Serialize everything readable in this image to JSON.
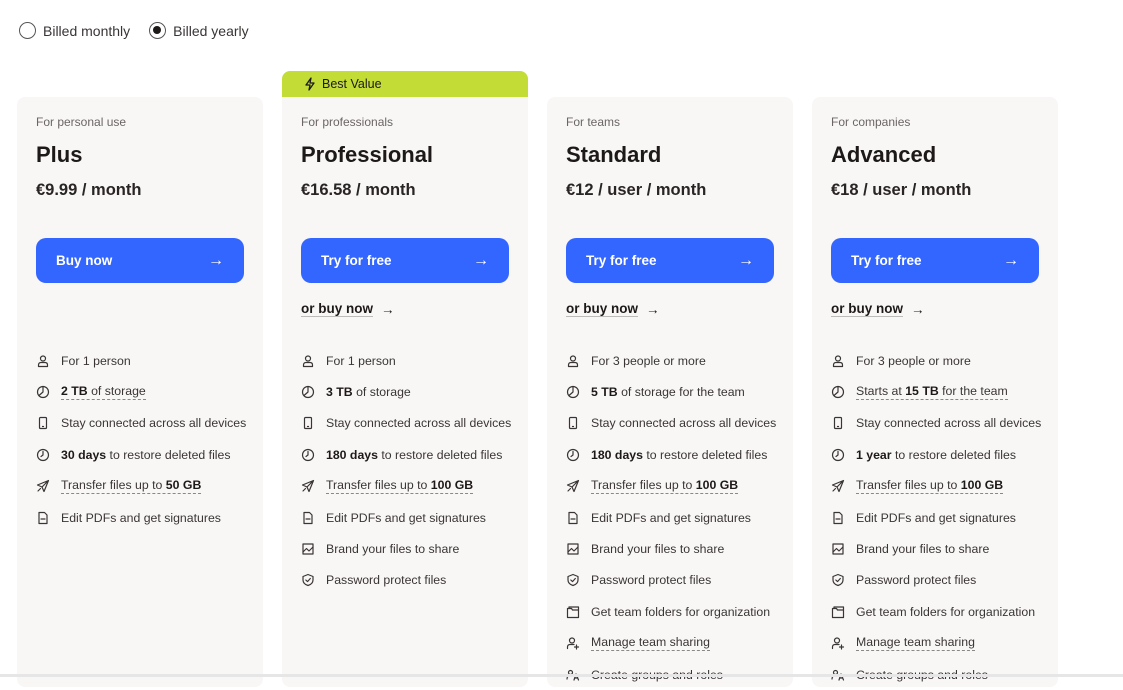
{
  "billing": {
    "options": [
      "Billed monthly",
      "Billed yearly"
    ],
    "selected": "Billed yearly"
  },
  "badge": {
    "label": "Best Value",
    "icon": "lightning-icon",
    "color": "#c3dd36"
  },
  "accent": "#3366ff",
  "plans": [
    {
      "audience": "For personal use",
      "name": "Plus",
      "price": "€9.99 / month",
      "cta": "Buy now",
      "alt": "",
      "features": [
        {
          "icon": "person-icon",
          "pre": "For 1 person",
          "bold": "",
          "post": "",
          "underline": false
        },
        {
          "icon": "storage-icon",
          "pre": "",
          "bold": "2 TB",
          "post": " of storage",
          "underline": true
        },
        {
          "icon": "device-icon",
          "pre": "Stay connected across all devices",
          "bold": "",
          "post": "",
          "underline": false
        },
        {
          "icon": "clock-icon",
          "pre": "",
          "bold": "30 days",
          "post": " to restore deleted files",
          "underline": false
        },
        {
          "icon": "send-icon",
          "pre": "Transfer files up to ",
          "bold": "50 GB",
          "post": "",
          "underline": true
        },
        {
          "icon": "pdf-icon",
          "pre": "Edit PDFs and get signatures",
          "bold": "",
          "post": "",
          "underline": false
        }
      ]
    },
    {
      "audience": "For professionals",
      "name": "Professional",
      "price": "€16.58 / month",
      "cta": "Try for free",
      "alt": "or buy now",
      "features": [
        {
          "icon": "person-icon",
          "pre": "For 1 person",
          "bold": "",
          "post": "",
          "underline": false
        },
        {
          "icon": "storage-icon",
          "pre": "",
          "bold": "3 TB",
          "post": " of storage",
          "underline": false
        },
        {
          "icon": "device-icon",
          "pre": "Stay connected across all devices",
          "bold": "",
          "post": "",
          "underline": false
        },
        {
          "icon": "clock-icon",
          "pre": "",
          "bold": "180 days",
          "post": " to restore deleted files",
          "underline": false
        },
        {
          "icon": "send-icon",
          "pre": "Transfer files up to ",
          "bold": "100 GB",
          "post": "",
          "underline": true
        },
        {
          "icon": "pdf-icon",
          "pre": "Edit PDFs and get signatures",
          "bold": "",
          "post": "",
          "underline": false
        },
        {
          "icon": "image-icon",
          "pre": "Brand your files to share",
          "bold": "",
          "post": "",
          "underline": false
        },
        {
          "icon": "shield-icon",
          "pre": "Password protect files",
          "bold": "",
          "post": "",
          "underline": false
        }
      ]
    },
    {
      "audience": "For teams",
      "name": "Standard",
      "price": "€12 / user / month",
      "cta": "Try for free",
      "alt": "or buy now",
      "features": [
        {
          "icon": "person-icon",
          "pre": "For 3 people or more",
          "bold": "",
          "post": "",
          "underline": false
        },
        {
          "icon": "storage-icon",
          "pre": "",
          "bold": "5 TB",
          "post": " of storage for the team",
          "underline": false
        },
        {
          "icon": "device-icon",
          "pre": "Stay connected across all devices",
          "bold": "",
          "post": "",
          "underline": false
        },
        {
          "icon": "clock-icon",
          "pre": "",
          "bold": "180 days",
          "post": " to restore deleted files",
          "underline": false
        },
        {
          "icon": "send-icon",
          "pre": "Transfer files up to ",
          "bold": "100 GB",
          "post": "",
          "underline": true
        },
        {
          "icon": "pdf-icon",
          "pre": "Edit PDFs and get signatures",
          "bold": "",
          "post": "",
          "underline": false
        },
        {
          "icon": "image-icon",
          "pre": "Brand your files to share",
          "bold": "",
          "post": "",
          "underline": false
        },
        {
          "icon": "shield-icon",
          "pre": "Password protect files",
          "bold": "",
          "post": "",
          "underline": false
        },
        {
          "icon": "folder-icon",
          "pre": "Get team folders for organization",
          "bold": "",
          "post": "",
          "underline": false
        },
        {
          "icon": "person-add-icon",
          "pre": "Manage team sharing",
          "bold": "",
          "post": "",
          "underline": true
        },
        {
          "icon": "group-icon",
          "pre": "Create groups and roles",
          "bold": "",
          "post": "",
          "underline": false
        }
      ]
    },
    {
      "audience": "For companies",
      "name": "Advanced",
      "price": "€18 / user / month",
      "cta": "Try for free",
      "alt": "or buy now",
      "features": [
        {
          "icon": "person-icon",
          "pre": "For 3 people or more",
          "bold": "",
          "post": "",
          "underline": false
        },
        {
          "icon": "storage-icon",
          "pre": "Starts at ",
          "bold": "15 TB",
          "post": " for the team",
          "underline": true
        },
        {
          "icon": "device-icon",
          "pre": "Stay connected across all devices",
          "bold": "",
          "post": "",
          "underline": false
        },
        {
          "icon": "clock-icon",
          "pre": "",
          "bold": "1 year",
          "post": " to restore deleted files",
          "underline": false
        },
        {
          "icon": "send-icon",
          "pre": "Transfer files up to ",
          "bold": "100 GB",
          "post": "",
          "underline": true
        },
        {
          "icon": "pdf-icon",
          "pre": "Edit PDFs and get signatures",
          "bold": "",
          "post": "",
          "underline": false
        },
        {
          "icon": "image-icon",
          "pre": "Brand your files to share",
          "bold": "",
          "post": "",
          "underline": false
        },
        {
          "icon": "shield-icon",
          "pre": "Password protect files",
          "bold": "",
          "post": "",
          "underline": false
        },
        {
          "icon": "folder-icon",
          "pre": "Get team folders for organization",
          "bold": "",
          "post": "",
          "underline": false
        },
        {
          "icon": "person-add-icon",
          "pre": "Manage team sharing",
          "bold": "",
          "post": "",
          "underline": true
        },
        {
          "icon": "group-icon",
          "pre": "Create groups and roles",
          "bold": "",
          "post": "",
          "underline": false
        }
      ]
    }
  ]
}
